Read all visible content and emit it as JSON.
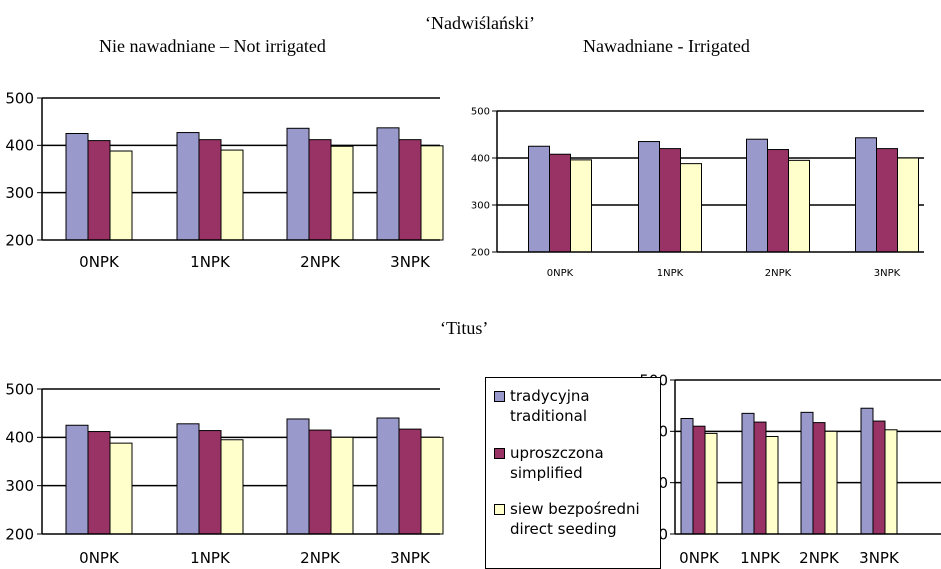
{
  "headings": {
    "cultivar_1": "‘Nadwiślański’",
    "cultivar_2": "‘Titus’",
    "not_irrigated": "Nie nawadniane – Not irrigated",
    "irrigated": "Nawadniane - Irrigated"
  },
  "colors": {
    "traditional": "#9999cc",
    "simplified": "#993366",
    "direct_seeding": "#ffffcc"
  },
  "legend": [
    {
      "key": "traditional",
      "line1": "tradycyjna",
      "line2": "traditional"
    },
    {
      "key": "simplified",
      "line1": "uproszczona",
      "line2": "simplified"
    },
    {
      "key": "direct_seeding",
      "line1": "siew bezpośredni",
      "line2": "direct seeding"
    }
  ],
  "chart_data": [
    {
      "type": "bar",
      "panel": "Nadwiślański – Not irrigated",
      "categories": [
        "0NPK",
        "1NPK",
        "2NPK",
        "3NPK"
      ],
      "ylim": [
        200,
        500
      ],
      "yticks": [
        "200",
        "300",
        "400",
        "500"
      ],
      "grid": true,
      "series": [
        {
          "name": "tradycyjna traditional",
          "key": "traditional",
          "values": [
            425,
            427,
            436,
            437
          ]
        },
        {
          "name": "uproszczona simplified",
          "key": "simplified",
          "values": [
            410,
            412,
            412,
            412
          ]
        },
        {
          "name": "siew bezpośredni direct seeding",
          "key": "direct_seeding",
          "values": [
            388,
            390,
            398,
            399
          ]
        }
      ]
    },
    {
      "type": "bar",
      "panel": "Nadwiślański – Irrigated",
      "categories": [
        "0NPK",
        "1NPK",
        "2NPK",
        "3NPK"
      ],
      "ylim": [
        200,
        500
      ],
      "yticks": [
        "200",
        "300",
        "400",
        "500"
      ],
      "grid": true,
      "series": [
        {
          "name": "tradycyjna traditional",
          "key": "traditional",
          "values": [
            425,
            435,
            440,
            443
          ]
        },
        {
          "name": "uproszczona simplified",
          "key": "simplified",
          "values": [
            408,
            420,
            418,
            420
          ]
        },
        {
          "name": "siew bezpośredni direct seeding",
          "key": "direct_seeding",
          "values": [
            396,
            388,
            395,
            400
          ]
        }
      ]
    },
    {
      "type": "bar",
      "panel": "Titus – Not irrigated",
      "categories": [
        "0NPK",
        "1NPK",
        "2NPK",
        "3NPK"
      ],
      "ylim": [
        200,
        500
      ],
      "yticks": [
        "200",
        "300",
        "400",
        "500"
      ],
      "grid": true,
      "series": [
        {
          "name": "tradycyjna traditional",
          "key": "traditional",
          "values": [
            425,
            428,
            438,
            440
          ]
        },
        {
          "name": "uproszczona simplified",
          "key": "simplified",
          "values": [
            412,
            414,
            415,
            417
          ]
        },
        {
          "name": "siew bezpośredni direct seeding",
          "key": "direct_seeding",
          "values": [
            388,
            395,
            400,
            400
          ]
        }
      ]
    },
    {
      "type": "bar",
      "panel": "Titus – Irrigated",
      "categories": [
        "0NPK",
        "1NPK",
        "2NPK",
        "3NPK"
      ],
      "ylim": [
        200,
        500
      ],
      "yticks": [
        "200",
        "300",
        "400",
        "500"
      ],
      "grid": true,
      "series": [
        {
          "name": "tradycyjna traditional",
          "key": "traditional",
          "values": [
            425,
            435,
            437,
            445
          ]
        },
        {
          "name": "uproszczona simplified",
          "key": "simplified",
          "values": [
            410,
            418,
            417,
            420
          ]
        },
        {
          "name": "siew bezpośredni direct seeding",
          "key": "direct_seeding",
          "values": [
            396,
            390,
            400,
            403
          ]
        }
      ]
    }
  ]
}
